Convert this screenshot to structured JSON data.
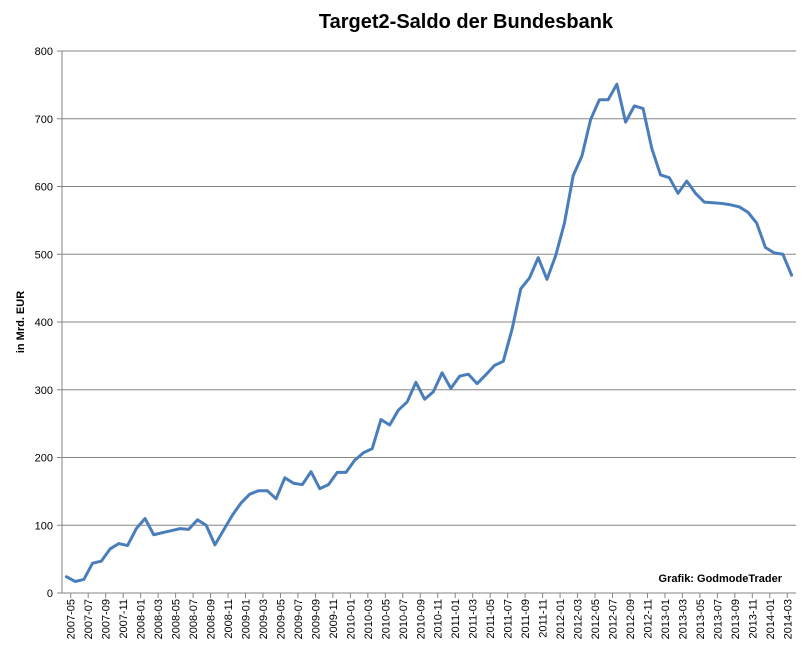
{
  "chart_data": {
    "type": "line",
    "title": "Target2-Saldo der Bundesbank",
    "ylabel": "in Mrd. EUR",
    "xlabel": "",
    "credit": "Grafik: GodmodeTrader",
    "ylim": [
      0,
      800
    ],
    "yticks": [
      "0",
      "100",
      "200",
      "300",
      "400",
      "500",
      "600",
      "700",
      "800"
    ],
    "grid": "horizontal",
    "line_color": "#4a7ebb",
    "x_tick_labels": [
      "2007-05",
      "2007-07",
      "2007-09",
      "2007-11",
      "2008-01",
      "2008-03",
      "2008-05",
      "2008-07",
      "2008-09",
      "2008-11",
      "2009-01",
      "2009-03",
      "2009-05",
      "2009-07",
      "2009-09",
      "2009-11",
      "2010-01",
      "2010-03",
      "2010-05",
      "2010-07",
      "2010-09",
      "2010-11",
      "2011-01",
      "2011-03",
      "2011-05",
      "2011-07",
      "2011-09",
      "2011-11",
      "2012-01",
      "2012-03",
      "2012-05",
      "2012-07",
      "2012-09",
      "2012-11",
      "2013-01",
      "2013-03",
      "2013-05",
      "2013-07",
      "2013-09",
      "2013-11",
      "2014-01",
      "2014-03"
    ],
    "series": [
      {
        "values": [
          24,
          17,
          20,
          44,
          47,
          65,
          73,
          70,
          95,
          110,
          86,
          89,
          92,
          95,
          94,
          108,
          100,
          71,
          93,
          115,
          133,
          146,
          151,
          151,
          139,
          170,
          162,
          160,
          179,
          154,
          160,
          178,
          178,
          196,
          207,
          213,
          256,
          248,
          270,
          282,
          311,
          286,
          297,
          325,
          302,
          320,
          323,
          309,
          322,
          336,
          342,
          389,
          449,
          465,
          495,
          463,
          498,
          546,
          616,
          645,
          699,
          728,
          728,
          751,
          695,
          719,
          715,
          656,
          617,
          613,
          590,
          608,
          590,
          577,
          576,
          575,
          573,
          570,
          562,
          546,
          510,
          502,
          500,
          469
        ]
      }
    ]
  }
}
